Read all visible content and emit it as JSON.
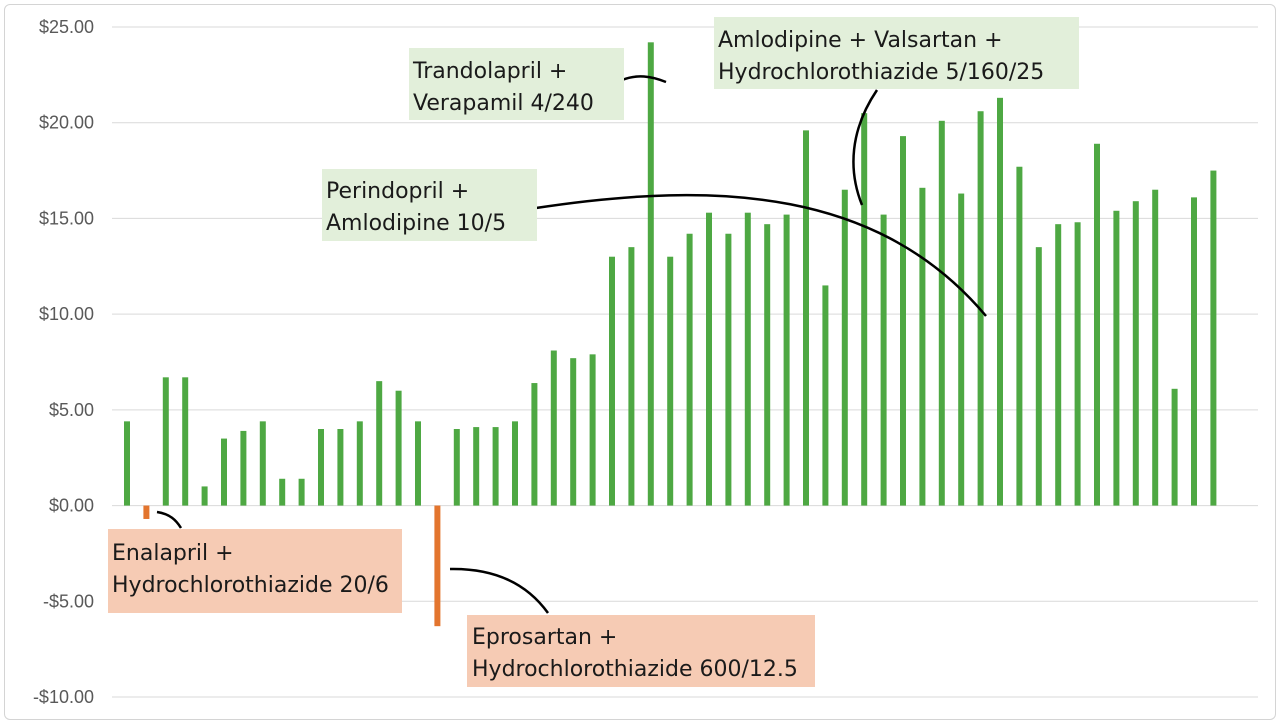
{
  "chart_data": {
    "type": "bar",
    "title": "",
    "xlabel": "",
    "ylabel": "",
    "ylim": [
      -10,
      25
    ],
    "y_ticks": [
      25,
      20,
      15,
      10,
      5,
      0,
      -5,
      -10
    ],
    "y_tick_labels": [
      "$25.00",
      "$20.00",
      "$15.00",
      "$10.00",
      "$5.00",
      "$0.00",
      "-$5.00",
      "-$10.00"
    ],
    "grid": true,
    "legend": "none",
    "colors": {
      "positive": "#4ea843",
      "negative": "#e3752e",
      "positive_label_bg": "#e2efda",
      "negative_label_bg": "#f6cbb4",
      "connector": "#000000",
      "grid": "#d9d9d9"
    },
    "values": [
      4.4,
      -0.7,
      6.7,
      6.7,
      1.0,
      3.5,
      3.9,
      4.4,
      1.4,
      1.4,
      4.0,
      4.0,
      4.4,
      6.5,
      6.0,
      4.4,
      -6.3,
      4.0,
      4.1,
      4.1,
      4.4,
      6.4,
      8.1,
      7.7,
      7.9,
      13.0,
      13.5,
      24.2,
      13.0,
      14.2,
      15.3,
      14.2,
      15.3,
      14.7,
      15.2,
      19.6,
      11.5,
      16.5,
      20.5,
      15.2,
      19.3,
      16.6,
      20.1,
      16.3,
      20.6,
      21.3,
      17.7,
      13.5,
      14.7,
      14.8,
      18.9,
      15.4,
      15.9,
      16.5,
      6.1,
      16.1,
      17.5
    ],
    "annotations": [
      {
        "id": "enalapril",
        "lines": [
          "Enalapril +",
          "Hydrochlorothiazide 20/6"
        ],
        "bar_index": 1,
        "tone": "negative"
      },
      {
        "id": "eprosartan",
        "lines": [
          "Eprosartan +",
          "Hydrochlorothiazide 600/12.5"
        ],
        "bar_index": 16,
        "tone": "negative"
      },
      {
        "id": "trandolapril",
        "lines": [
          "Trandolapril +",
          "Verapamil 4/240"
        ],
        "bar_index": 27,
        "tone": "positive"
      },
      {
        "id": "perindopril",
        "lines": [
          "Perindopril +",
          "Amlodipine 10/5"
        ],
        "bar_index": 43,
        "tone": "positive"
      },
      {
        "id": "amlodipine-valsartan",
        "lines": [
          "Amlodipine + Valsartan +",
          "Hydrochlorothiazide 5/160/25"
        ],
        "bar_index": 37,
        "tone": "positive"
      }
    ]
  }
}
